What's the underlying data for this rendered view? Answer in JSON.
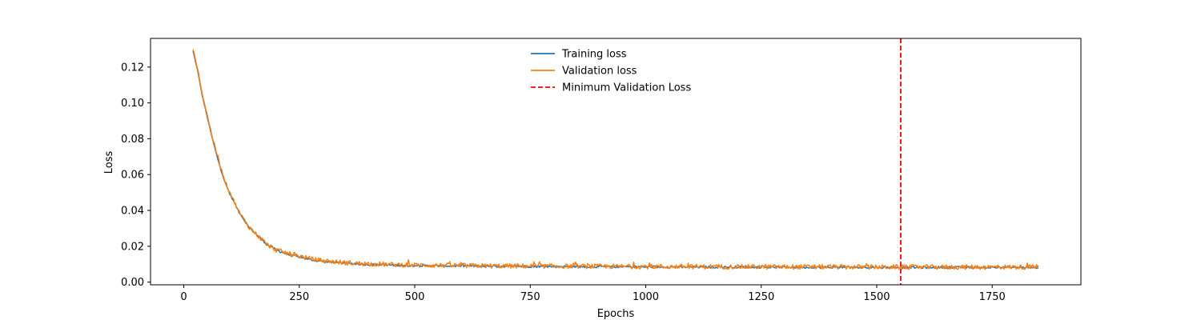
{
  "chart_data": {
    "type": "line",
    "title": "",
    "xlabel": "Epochs",
    "ylabel": "Loss",
    "xlim": [
      -72,
      1942
    ],
    "ylim": [
      -0.0015,
      0.136
    ],
    "x_ticks": [
      0,
      250,
      500,
      750,
      1000,
      1250,
      1500,
      1750
    ],
    "y_ticks": [
      0.0,
      0.02,
      0.04,
      0.06,
      0.08,
      0.1,
      0.12
    ],
    "y_tick_labels": [
      "0.00",
      "0.02",
      "0.04",
      "0.06",
      "0.08",
      "0.10",
      "0.12"
    ],
    "grid": false,
    "legend_position": "top-center",
    "series": [
      {
        "name": "Training loss",
        "color": "#1f77b4",
        "style": "solid",
        "x": [
          20,
          30,
          40,
          50,
          60,
          70,
          80,
          90,
          100,
          120,
          140,
          160,
          180,
          200,
          225,
          250,
          275,
          300,
          350,
          400,
          450,
          500,
          600,
          700,
          800,
          900,
          1000,
          1100,
          1200,
          1300,
          1400,
          1500,
          1600,
          1700,
          1800,
          1850
        ],
        "y": [
          0.129,
          0.118,
          0.104,
          0.093,
          0.082,
          0.072,
          0.063,
          0.055,
          0.049,
          0.039,
          0.031,
          0.026,
          0.021,
          0.018,
          0.0155,
          0.014,
          0.0125,
          0.0115,
          0.0105,
          0.0098,
          0.0095,
          0.0092,
          0.009,
          0.0088,
          0.0087,
          0.0086,
          0.0085,
          0.0084,
          0.0084,
          0.0083,
          0.0083,
          0.0082,
          0.0082,
          0.0082,
          0.0082,
          0.0082
        ]
      },
      {
        "name": "Validation loss",
        "color": "#ff7f0e",
        "style": "solid",
        "x": [
          20,
          30,
          40,
          50,
          60,
          70,
          80,
          90,
          100,
          120,
          140,
          160,
          180,
          200,
          225,
          250,
          275,
          300,
          350,
          400,
          450,
          500,
          600,
          700,
          800,
          900,
          1000,
          1100,
          1200,
          1300,
          1400,
          1500,
          1600,
          1700,
          1800,
          1850
        ],
        "y": [
          0.13,
          0.119,
          0.105,
          0.094,
          0.083,
          0.073,
          0.064,
          0.056,
          0.05,
          0.039,
          0.031,
          0.026,
          0.021,
          0.018,
          0.016,
          0.0145,
          0.013,
          0.012,
          0.0108,
          0.0102,
          0.0098,
          0.0095,
          0.0092,
          0.009,
          0.0089,
          0.0088,
          0.0087,
          0.0086,
          0.0086,
          0.0085,
          0.0085,
          0.0084,
          0.0084,
          0.0084,
          0.0084,
          0.0084
        ]
      }
    ],
    "vline": {
      "name": "Minimum Validation Loss",
      "x": 1552,
      "color": "#ff0000",
      "style": "dashed"
    }
  }
}
